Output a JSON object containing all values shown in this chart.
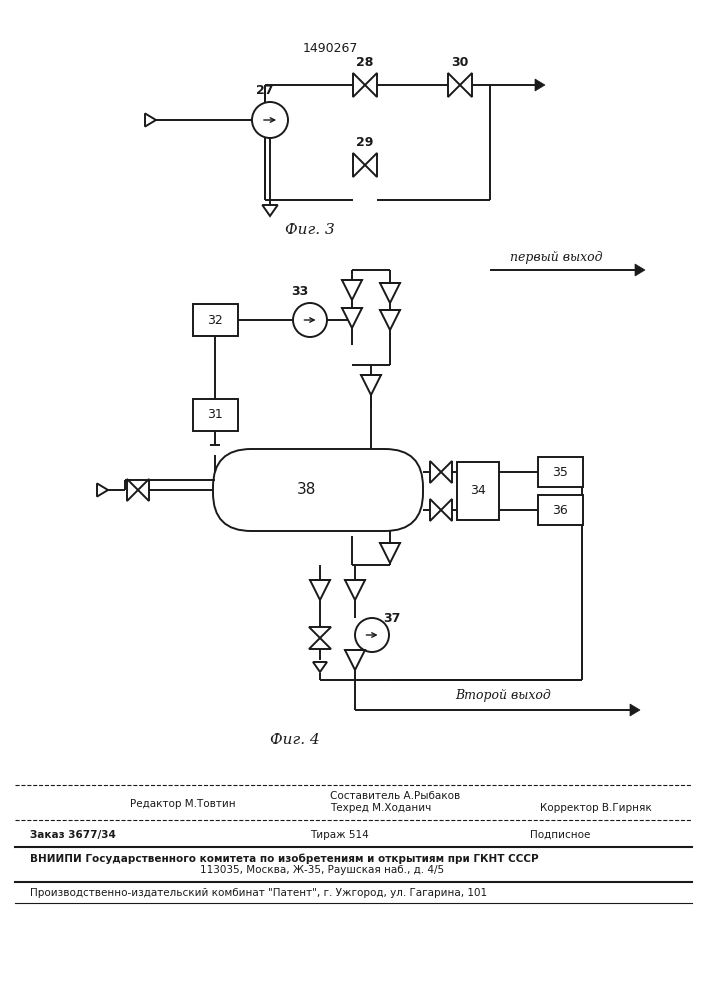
{
  "patent_number": "1490267",
  "fig3_label": "Фиг. 3",
  "fig4_label": "Фиг. 4",
  "first_output_label": "первый выход",
  "second_output_label": "Второй выход",
  "bg_color": "#ffffff",
  "line_color": "#1a1a1a"
}
